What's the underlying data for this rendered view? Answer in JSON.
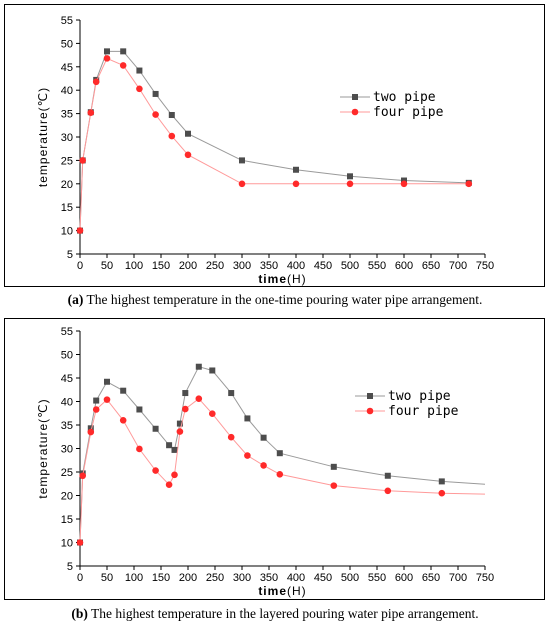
{
  "chart_data": [
    {
      "type": "line",
      "xlabel": "time",
      "xunit": "(H)",
      "ylabel": "temperature(℃)",
      "xlim": [
        0,
        750
      ],
      "ylim": [
        5,
        55
      ],
      "xticks": [
        0,
        50,
        100,
        150,
        200,
        250,
        300,
        350,
        400,
        450,
        500,
        550,
        600,
        650,
        700,
        750
      ],
      "yticks": [
        5,
        10,
        15,
        20,
        25,
        30,
        35,
        40,
        45,
        50,
        55
      ],
      "legend_position": "right",
      "grid": false,
      "series": [
        {
          "name": "two pipe",
          "marker": "square",
          "color": "#4d4d4d",
          "line_color": "#9a9a9a",
          "x": [
            0,
            5,
            20,
            30,
            50,
            80,
            110,
            140,
            170,
            200,
            300,
            400,
            500,
            600,
            720
          ],
          "y": [
            10,
            25,
            35.3,
            42.2,
            48.3,
            48.3,
            44.2,
            39.2,
            34.7,
            30.7,
            25,
            23,
            21.6,
            20.7,
            20.2
          ]
        },
        {
          "name": "four pipe",
          "marker": "circle",
          "color": "#ff2a2a",
          "line_color": "#ff9a9a",
          "x": [
            0,
            5,
            20,
            30,
            50,
            80,
            110,
            140,
            170,
            200,
            300,
            400,
            500,
            600,
            720
          ],
          "y": [
            10,
            25,
            35.2,
            41.8,
            46.8,
            45.3,
            40.3,
            34.8,
            30.2,
            26.2,
            20,
            20,
            20,
            20,
            20
          ]
        }
      ]
    },
    {
      "type": "line",
      "xlabel": "time",
      "xunit": "(H)",
      "ylabel": "temperature(℃)",
      "xlim": [
        0,
        750
      ],
      "ylim": [
        5,
        55
      ],
      "xticks": [
        0,
        50,
        100,
        150,
        200,
        250,
        300,
        350,
        400,
        450,
        500,
        550,
        600,
        650,
        700,
        750
      ],
      "yticks": [
        5,
        10,
        15,
        20,
        25,
        30,
        35,
        40,
        45,
        50,
        55
      ],
      "legend_position": "right",
      "grid": false,
      "series": [
        {
          "name": "two pipe",
          "marker": "square",
          "color": "#4d4d4d",
          "line_color": "#9a9a9a",
          "x": [
            0,
            5,
            20,
            30,
            50,
            80,
            110,
            140,
            165,
            175,
            185,
            195,
            220,
            245,
            280,
            310,
            340,
            370,
            470,
            570,
            670,
            750
          ],
          "y": [
            10,
            24.7,
            34.3,
            40.2,
            44.2,
            42.3,
            38.3,
            34.2,
            30.7,
            29.7,
            35.3,
            41.8,
            47.4,
            46.6,
            41.8,
            36.4,
            32.3,
            29,
            26.1,
            24.2,
            23,
            22.4
          ],
          "marker_count": 21
        },
        {
          "name": "four pipe",
          "marker": "circle",
          "color": "#ff2a2a",
          "line_color": "#ff9a9a",
          "x": [
            0,
            5,
            20,
            30,
            50,
            80,
            110,
            140,
            165,
            175,
            185,
            195,
            220,
            245,
            280,
            310,
            340,
            370,
            470,
            570,
            670,
            750
          ],
          "y": [
            10,
            24.2,
            33.5,
            38.3,
            40.4,
            36,
            29.9,
            25.3,
            22.3,
            24.4,
            33.6,
            38.4,
            40.6,
            37.4,
            32.4,
            28.5,
            26.4,
            24.5,
            22.1,
            21,
            20.5,
            20.3
          ],
          "marker_count": 21
        }
      ]
    }
  ],
  "captions": [
    {
      "tag": "(a)",
      "text": " The highest temperature in the one-time pouring water pipe arrangement."
    },
    {
      "tag": "(b)",
      "text": " The highest temperature in the layered pouring water pipe arrangement."
    }
  ]
}
